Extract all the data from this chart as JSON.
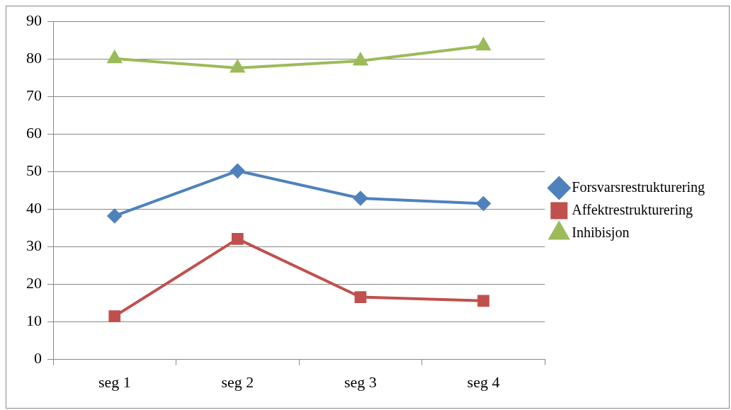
{
  "chart_data": {
    "type": "line",
    "categories": [
      "seg 1",
      "seg 2",
      "seg 3",
      "seg 4"
    ],
    "series": [
      {
        "name": "Forsvarsrestrukturering",
        "color": "#4f81bd",
        "marker": "diamond",
        "values": [
          38.2,
          50.2,
          42.9,
          41.5
        ]
      },
      {
        "name": "Affektrestrukturering",
        "color": "#c0504d",
        "marker": "square",
        "values": [
          11.5,
          32.1,
          16.6,
          15.6
        ]
      },
      {
        "name": "Inhibisjon",
        "color": "#9bbb59",
        "marker": "triangle",
        "values": [
          80.1,
          77.6,
          79.5,
          83.5
        ]
      }
    ],
    "ylim": [
      0,
      90
    ],
    "yticks": [
      0,
      10,
      20,
      30,
      40,
      50,
      60,
      70,
      80,
      90
    ],
    "grid": "y",
    "legend": "right",
    "line_style": "solid"
  }
}
